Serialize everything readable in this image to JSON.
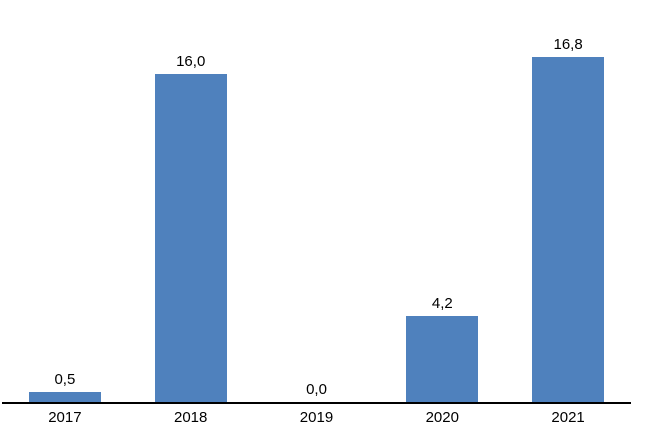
{
  "chart_data": {
    "type": "bar",
    "title": "",
    "xlabel": "",
    "ylabel": "",
    "categories": [
      "2017",
      "2018",
      "2019",
      "2020",
      "2021"
    ],
    "values": [
      0.5,
      16.0,
      0.0,
      4.2,
      16.8
    ],
    "value_labels": [
      "0,5",
      "16,0",
      "0,0",
      "4,2",
      "16,8"
    ],
    "ylim": [
      0,
      19.6
    ],
    "grid": false,
    "legend": false,
    "bar_color": "#4F81BD",
    "axis_line_color": "#000000",
    "label_color": "#000000"
  }
}
